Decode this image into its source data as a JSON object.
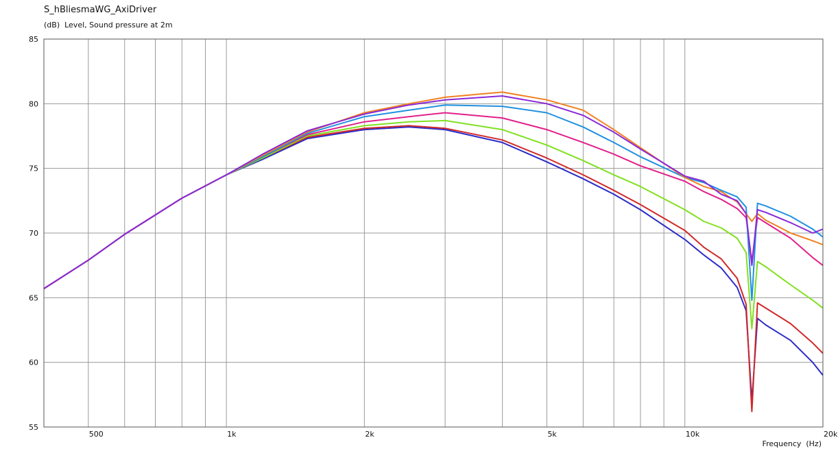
{
  "chart_data": {
    "type": "line",
    "title": "S_hBliesmaWG_AxiDriver",
    "subtitle": "(dB)  Level, Sound pressure at 2m",
    "x_label": "Frequency  (Hz)",
    "xscale": "log",
    "grid": true,
    "x": [
      400,
      500,
      600,
      700,
      800,
      1000,
      1200,
      1500,
      2000,
      2500,
      3000,
      4000,
      5000,
      6000,
      7000,
      8000,
      10000,
      11000,
      12000,
      13000,
      13600,
      14000,
      14400,
      15000,
      17000,
      19000,
      20000
    ],
    "xlim": [
      400,
      20000
    ],
    "xticks": [
      500,
      {
        "value": 1000,
        "label": "1k"
      },
      {
        "value": 2000,
        "label": "2k"
      },
      {
        "value": 5000,
        "label": "5k"
      },
      {
        "value": 10000,
        "label": "10k"
      },
      {
        "value": 20000,
        "label": "20k"
      }
    ],
    "xminor": [
      600,
      700,
      800,
      900,
      3000,
      4000,
      6000,
      7000,
      8000,
      9000
    ],
    "ylim": [
      55,
      85
    ],
    "yticks": [
      55,
      60,
      65,
      70,
      75,
      80,
      85
    ],
    "series": [
      {
        "color": "#2b2bc8",
        "values": [
          65.7,
          67.9,
          69.9,
          71.4,
          72.7,
          74.5,
          75.7,
          77.3,
          78.0,
          78.2,
          78.0,
          77.0,
          75.5,
          74.2,
          73.0,
          71.8,
          69.5,
          68.3,
          67.3,
          65.8,
          64.0,
          57.0,
          63.4,
          62.9,
          61.7,
          60.0,
          59.0
        ]
      },
      {
        "color": "#d02828",
        "values": [
          65.7,
          67.9,
          69.9,
          71.4,
          72.7,
          74.5,
          75.8,
          77.4,
          78.1,
          78.3,
          78.1,
          77.2,
          75.8,
          74.5,
          73.3,
          72.2,
          70.2,
          68.9,
          68.0,
          66.5,
          64.5,
          56.2,
          64.6,
          64.2,
          63.0,
          61.5,
          60.7
        ]
      },
      {
        "color": "#80e020",
        "values": [
          65.7,
          67.9,
          69.9,
          71.4,
          72.7,
          74.5,
          75.8,
          77.5,
          78.3,
          78.6,
          78.7,
          78.0,
          76.8,
          75.6,
          74.5,
          73.6,
          71.8,
          70.9,
          70.4,
          69.6,
          68.5,
          62.6,
          67.8,
          67.4,
          66.0,
          64.8,
          64.2
        ]
      },
      {
        "color": "#e0208a",
        "values": [
          65.7,
          67.9,
          69.9,
          71.4,
          72.7,
          74.5,
          75.9,
          77.6,
          78.6,
          79.0,
          79.3,
          78.9,
          78.0,
          77.0,
          76.1,
          75.2,
          74.0,
          73.2,
          72.6,
          71.9,
          71.2,
          67.8,
          71.2,
          70.8,
          69.6,
          68.1,
          67.5
        ]
      },
      {
        "color": "#2090e0",
        "values": [
          65.7,
          67.9,
          69.9,
          71.4,
          72.7,
          74.5,
          75.9,
          77.7,
          79.0,
          79.5,
          79.9,
          79.8,
          79.3,
          78.2,
          77.0,
          75.9,
          74.3,
          73.9,
          73.3,
          72.8,
          72.0,
          64.8,
          72.3,
          72.1,
          71.3,
          70.3,
          69.7
        ]
      },
      {
        "color": "#f08020",
        "values": [
          65.7,
          67.9,
          69.9,
          71.4,
          72.7,
          74.5,
          76.0,
          77.8,
          79.3,
          80.0,
          80.5,
          80.9,
          80.3,
          79.5,
          78.0,
          76.6,
          74.3,
          73.6,
          73.2,
          72.4,
          71.5,
          70.9,
          71.5,
          71.0,
          70.0,
          69.4,
          69.1
        ]
      },
      {
        "color": "#8a28d8",
        "values": [
          65.7,
          67.9,
          69.9,
          71.4,
          72.7,
          74.5,
          76.1,
          77.9,
          79.2,
          79.9,
          80.3,
          80.6,
          80.0,
          79.1,
          77.8,
          76.5,
          74.4,
          74.0,
          73.0,
          72.5,
          71.5,
          67.5,
          71.8,
          71.6,
          70.8,
          70.0,
          70.3
        ]
      }
    ]
  }
}
